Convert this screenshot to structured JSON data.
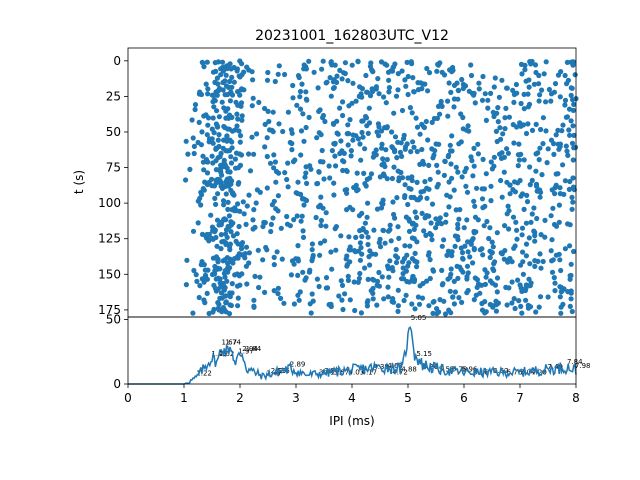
{
  "chart_data": [
    {
      "type": "scatter",
      "title": "20231001_162803UTC_V12",
      "xlabel": "",
      "ylabel": "t (s)",
      "xlim": [
        0,
        8
      ],
      "ylim": [
        180,
        -9
      ],
      "y_inverted": true,
      "yticks": [
        0,
        25,
        50,
        75,
        100,
        125,
        150,
        175
      ],
      "color": "#1f77b4",
      "point_density": [
        {
          "x_range": [
            1.0,
            1.25
          ],
          "density": 0.3
        },
        {
          "x_range": [
            1.25,
            1.5
          ],
          "density": 1.2
        },
        {
          "x_range": [
            1.5,
            1.85
          ],
          "density": 3.0
        },
        {
          "x_range": [
            1.85,
            2.05
          ],
          "density": 1.8
        },
        {
          "x_range": [
            2.05,
            3.0
          ],
          "density": 0.55
        },
        {
          "x_range": [
            3.0,
            4.0
          ],
          "density": 0.85
        },
        {
          "x_range": [
            4.0,
            5.0
          ],
          "density": 1.05
        },
        {
          "x_range": [
            5.0,
            6.0
          ],
          "density": 1.05
        },
        {
          "x_range": [
            6.0,
            8.0
          ],
          "density": 0.95
        }
      ],
      "t_range": [
        0,
        178
      ]
    },
    {
      "type": "line",
      "title": "",
      "xlabel": "IPI (ms)",
      "ylabel": "",
      "xlim": [
        0,
        8
      ],
      "ylim": [
        0,
        52
      ],
      "xticks": [
        0,
        1,
        2,
        3,
        4,
        5,
        6,
        7,
        8
      ],
      "yticks": [
        0,
        50
      ],
      "color": "#1f77b4",
      "profile": [
        {
          "x": 0.0,
          "y": 0
        },
        {
          "x": 1.0,
          "y": 0
        },
        {
          "x": 1.1,
          "y": 2
        },
        {
          "x": 1.22,
          "y": 5
        },
        {
          "x": 1.35,
          "y": 12
        },
        {
          "x": 1.49,
          "y": 20
        },
        {
          "x": 1.6,
          "y": 17
        },
        {
          "x": 1.67,
          "y": 29
        },
        {
          "x": 1.74,
          "y": 25
        },
        {
          "x": 1.84,
          "y": 29
        },
        {
          "x": 1.92,
          "y": 14
        },
        {
          "x": 1.97,
          "y": 22
        },
        {
          "x": 2.04,
          "y": 24
        },
        {
          "x": 2.12,
          "y": 12
        },
        {
          "x": 2.4,
          "y": 6
        },
        {
          "x": 2.89,
          "y": 12
        },
        {
          "x": 3.2,
          "y": 7
        },
        {
          "x": 4.0,
          "y": 11
        },
        {
          "x": 4.55,
          "y": 13
        },
        {
          "x": 4.9,
          "y": 12
        },
        {
          "x": 5.05,
          "y": 48
        },
        {
          "x": 5.12,
          "y": 22
        },
        {
          "x": 5.26,
          "y": 15
        },
        {
          "x": 5.6,
          "y": 11
        },
        {
          "x": 6.0,
          "y": 9
        },
        {
          "x": 7.0,
          "y": 9
        },
        {
          "x": 7.84,
          "y": 13
        },
        {
          "x": 8.0,
          "y": 11
        }
      ],
      "annotations": [
        {
          "x": 1.22,
          "y": 5,
          "text": "1.22"
        },
        {
          "x": 1.49,
          "y": 20,
          "text": "1.49"
        },
        {
          "x": 1.62,
          "y": 20,
          "text": "1.62"
        },
        {
          "x": 1.67,
          "y": 29,
          "text": "1.67"
        },
        {
          "x": 1.74,
          "y": 29,
          "text": "1.74"
        },
        {
          "x": 1.97,
          "y": 22,
          "text": "1.97"
        },
        {
          "x": 2.04,
          "y": 24,
          "text": "2.04"
        },
        {
          "x": 2.1,
          "y": 24,
          "text": "1.84"
        },
        {
          "x": 2.47,
          "y": 5,
          "text": "2.47"
        },
        {
          "x": 2.55,
          "y": 7,
          "text": "2.55"
        },
        {
          "x": 2.69,
          "y": 7,
          "text": "2.6"
        },
        {
          "x": 2.89,
          "y": 12,
          "text": "2.89"
        },
        {
          "x": 3.41,
          "y": 6,
          "text": "3.41"
        },
        {
          "x": 3.5,
          "y": 7,
          "text": "3.59"
        },
        {
          "x": 3.67,
          "y": 6,
          "text": "3.67"
        },
        {
          "x": 3.94,
          "y": 6,
          "text": "4.03"
        },
        {
          "x": 4.17,
          "y": 6,
          "text": "4.17"
        },
        {
          "x": 4.38,
          "y": 10,
          "text": "4.38"
        },
        {
          "x": 4.63,
          "y": 11,
          "text": "4.63"
        },
        {
          "x": 4.72,
          "y": 6,
          "text": "4.72"
        },
        {
          "x": 4.88,
          "y": 8,
          "text": "4.88"
        },
        {
          "x": 5.05,
          "y": 48,
          "text": "5.05"
        },
        {
          "x": 5.15,
          "y": 20,
          "text": "5.15"
        },
        {
          "x": 5.26,
          "y": 10,
          "text": "5.26"
        },
        {
          "x": 5.55,
          "y": 8,
          "text": "5.55"
        },
        {
          "x": 5.78,
          "y": 8,
          "text": "5.78"
        },
        {
          "x": 5.96,
          "y": 8,
          "text": "5.96"
        },
        {
          "x": 6.16,
          "y": 6,
          "text": "6.16"
        },
        {
          "x": 6.52,
          "y": 7,
          "text": "6.52"
        },
        {
          "x": 6.76,
          "y": 6,
          "text": "6.76"
        },
        {
          "x": 7.0,
          "y": 6,
          "text": "7.04"
        },
        {
          "x": 7.2,
          "y": 6,
          "text": "7.20"
        },
        {
          "x": 7.49,
          "y": 10,
          "text": "7.49"
        },
        {
          "x": 7.84,
          "y": 14,
          "text": "7.84"
        },
        {
          "x": 7.98,
          "y": 11,
          "text": "7.98"
        }
      ]
    }
  ]
}
